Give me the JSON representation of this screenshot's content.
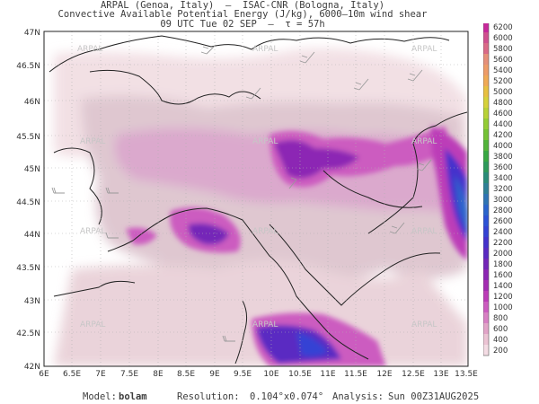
{
  "header": {
    "line1": "ARPAL (Genoa, Italy)  —  ISAC-CNR (Bologna, Italy)",
    "line2": "Convective Available Potential Energy (J/kg), 6000–10m wind shear",
    "line3": "09 UTC Tue 02 SEP  —  τ = 57h"
  },
  "footer": {
    "model_label": "Model:",
    "model_value": "bolam",
    "resolution_label": "Resolution:",
    "resolution_value": "0.104°x0.074°",
    "analysis_label": "Analysis:",
    "analysis_value": "Sun 00Z31AUG2025"
  },
  "watermark": "ARPAL",
  "map": {
    "lon_ticks": [
      "6E",
      "6.5E",
      "7E",
      "7.5E",
      "8E",
      "8.5E",
      "9E",
      "9.5E",
      "10E",
      "10.5E",
      "11E",
      "11.5E",
      "12E",
      "12.5E",
      "13E",
      "13.5E"
    ],
    "lat_ticks": [
      "47N",
      "46.5N",
      "46N",
      "45.5N",
      "45N",
      "44.5N",
      "44N",
      "43.5N",
      "43N",
      "42.5N",
      "42N"
    ]
  },
  "legend": {
    "levels": [
      "6200",
      "6000",
      "5800",
      "5600",
      "5400",
      "5200",
      "5000",
      "4800",
      "4600",
      "4400",
      "4200",
      "4000",
      "3800",
      "3600",
      "3400",
      "3200",
      "3000",
      "2800",
      "2600",
      "2400",
      "2200",
      "2000",
      "1800",
      "1600",
      "1400",
      "1200",
      "1000",
      "800",
      "600",
      "400",
      "200"
    ],
    "colors": [
      "#c8289b",
      "#d05090",
      "#da6a88",
      "#e6907a",
      "#ee9c68",
      "#f0aa55",
      "#e8c040",
      "#d6d23a",
      "#b8d236",
      "#94cc34",
      "#74c234",
      "#52b43a",
      "#38a842",
      "#2e9a5a",
      "#2a8c78",
      "#2e8096",
      "#2e74b4",
      "#2a64cc",
      "#2c52d6",
      "#3442d4",
      "#4432cc",
      "#5a2ac2",
      "#7426b8",
      "#8c26b4",
      "#a42cb2",
      "#bc3cb8",
      "#cc5cc0",
      "#d880c4",
      "#e2a4c8",
      "#ecc4d4",
      "#f4dce4"
    ]
  }
}
